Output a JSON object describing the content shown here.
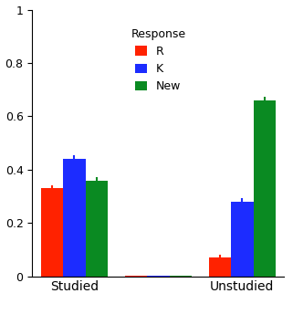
{
  "chart_data": {
    "type": "bar",
    "categories": [
      "Studied",
      null,
      "Unstudied"
    ],
    "legend_title": "Response",
    "legend": "upper center",
    "series": [
      {
        "name": "R",
        "color": "#ff2200",
        "values": [
          0.33,
          0.003,
          0.07
        ],
        "errors": [
          0.012,
          0.0,
          0.012
        ]
      },
      {
        "name": "K",
        "color": "#1c2cff",
        "values": [
          0.44,
          0.003,
          0.28
        ],
        "errors": [
          0.013,
          0.0,
          0.013
        ]
      },
      {
        "name": "New",
        "color": "#0a8a22",
        "values": [
          0.36,
          0.003,
          0.66
        ],
        "errors": [
          0.013,
          0.0,
          0.013
        ]
      }
    ],
    "ylim": [
      0,
      1
    ],
    "yticks": [
      0,
      0.2,
      0.4,
      0.6,
      0.8,
      1
    ]
  }
}
